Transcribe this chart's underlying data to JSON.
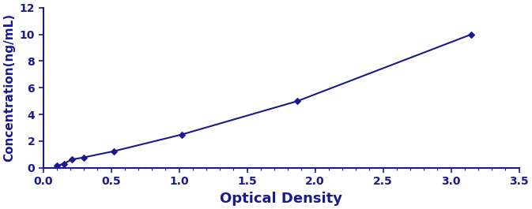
{
  "x": [
    0.1,
    0.152,
    0.21,
    0.297,
    0.52,
    1.02,
    1.87,
    3.15
  ],
  "y": [
    0.156,
    0.312,
    0.625,
    0.781,
    1.25,
    2.5,
    5.0,
    10.0
  ],
  "line_color": "#1a1a8c",
  "marker": "D",
  "marker_size": 4,
  "marker_color": "#1a1a8c",
  "xlabel": "Optical Density",
  "ylabel": "Concentration(ng/mL)",
  "xlim": [
    0,
    3.5
  ],
  "ylim": [
    0,
    12
  ],
  "xticks": [
    0.0,
    0.5,
    1.0,
    1.5,
    2.0,
    2.5,
    3.0,
    3.5
  ],
  "yticks": [
    0,
    2,
    4,
    6,
    8,
    10,
    12
  ],
  "xlabel_fontsize": 13,
  "ylabel_fontsize": 11,
  "tick_fontsize": 10,
  "line_width": 1.5,
  "background_color": "#ffffff",
  "line_style": "-"
}
